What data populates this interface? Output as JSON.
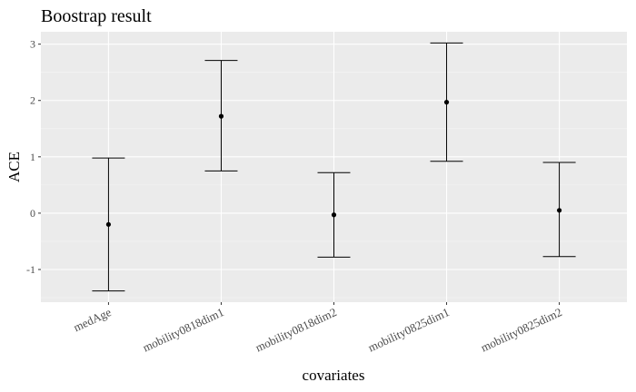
{
  "chart_data": {
    "type": "errorbar",
    "title": "Boostrap result",
    "xlabel": "covariates",
    "ylabel": "ACE",
    "categories": [
      "medAge",
      "mobility0818dim1",
      "mobility0818dim2",
      "mobility0825dim1",
      "mobility0825dim2"
    ],
    "series": [
      {
        "estimate": [
          -0.2,
          1.72,
          -0.03,
          1.97,
          0.05
        ],
        "lower": [
          -1.38,
          0.75,
          -0.78,
          0.92,
          -0.77
        ],
        "upper": [
          0.98,
          2.71,
          0.72,
          3.02,
          0.9
        ]
      }
    ],
    "yticks": [
      -1,
      0,
      1,
      2,
      3
    ],
    "ylim": [
      -1.58,
      3.22
    ],
    "grid": true,
    "legend": "none",
    "colors": {
      "panel_background": "#ebebeb",
      "grid_major": "#ffffff",
      "grid_minor": "#f5f5f5",
      "marks": "#000000"
    }
  }
}
